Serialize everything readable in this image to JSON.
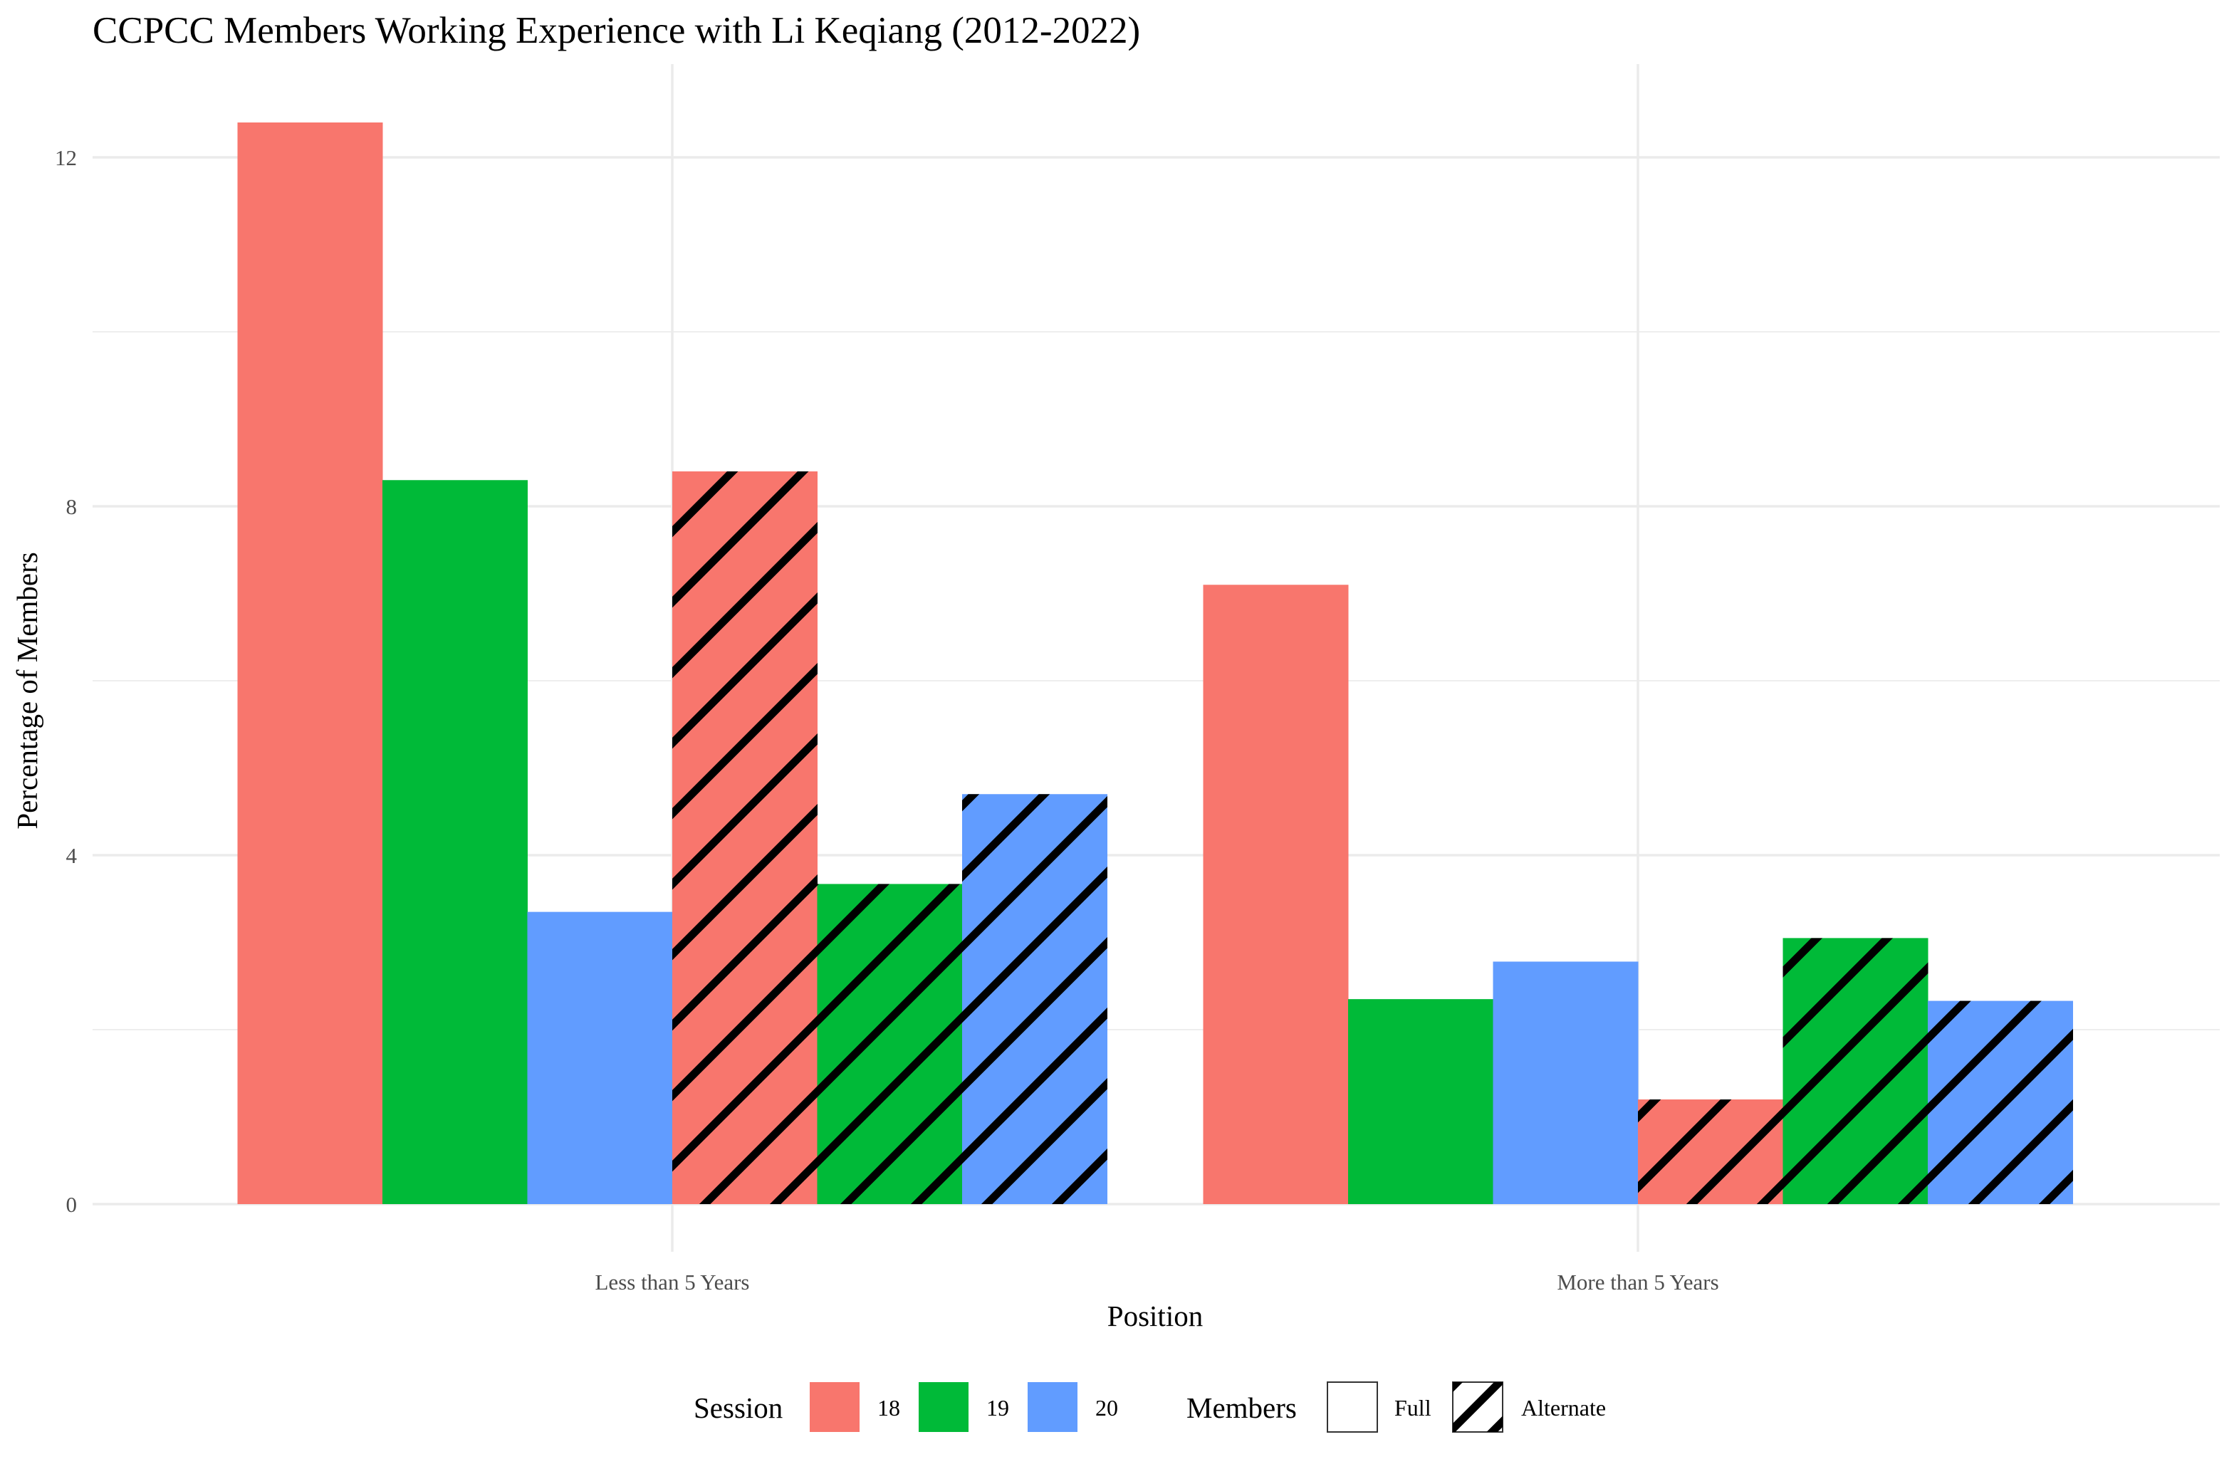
{
  "chart_data": {
    "type": "bar",
    "title": "CCPCC Members Working Experience with Li Keqiang (2012-2022)",
    "xlabel": "Position",
    "ylabel": "Percentage of Members",
    "categories": [
      "Less than 5 Years",
      "More than 5 Years"
    ],
    "ylim": [
      0,
      13
    ],
    "yticks": [
      0,
      4,
      8,
      12
    ],
    "grid": true,
    "legend_position": "bottom",
    "series": [
      {
        "session": "18",
        "members": "Full",
        "color": "#F8766D",
        "pattern": "none",
        "values": [
          12.4,
          7.1
        ]
      },
      {
        "session": "19",
        "members": "Full",
        "color": "#00BA38",
        "pattern": "none",
        "values": [
          8.3,
          2.35
        ]
      },
      {
        "session": "20",
        "members": "Full",
        "color": "#619CFF",
        "pattern": "none",
        "values": [
          3.35,
          2.78
        ]
      },
      {
        "session": "18",
        "members": "Alternate",
        "color": "#F8766D",
        "pattern": "stripe",
        "values": [
          8.4,
          1.2
        ]
      },
      {
        "session": "19",
        "members": "Alternate",
        "color": "#00BA38",
        "pattern": "stripe",
        "values": [
          3.67,
          3.05
        ]
      },
      {
        "session": "20",
        "members": "Alternate",
        "color": "#619CFF",
        "pattern": "stripe",
        "values": [
          4.7,
          2.33
        ]
      }
    ],
    "legend": {
      "session_title": "Session",
      "session_items": [
        {
          "label": "18",
          "color": "#F8766D"
        },
        {
          "label": "19",
          "color": "#00BA38"
        },
        {
          "label": "20",
          "color": "#619CFF"
        }
      ],
      "members_title": "Members",
      "members_items": [
        {
          "label": "Full",
          "pattern": "none"
        },
        {
          "label": "Alternate",
          "pattern": "stripe"
        }
      ]
    }
  }
}
